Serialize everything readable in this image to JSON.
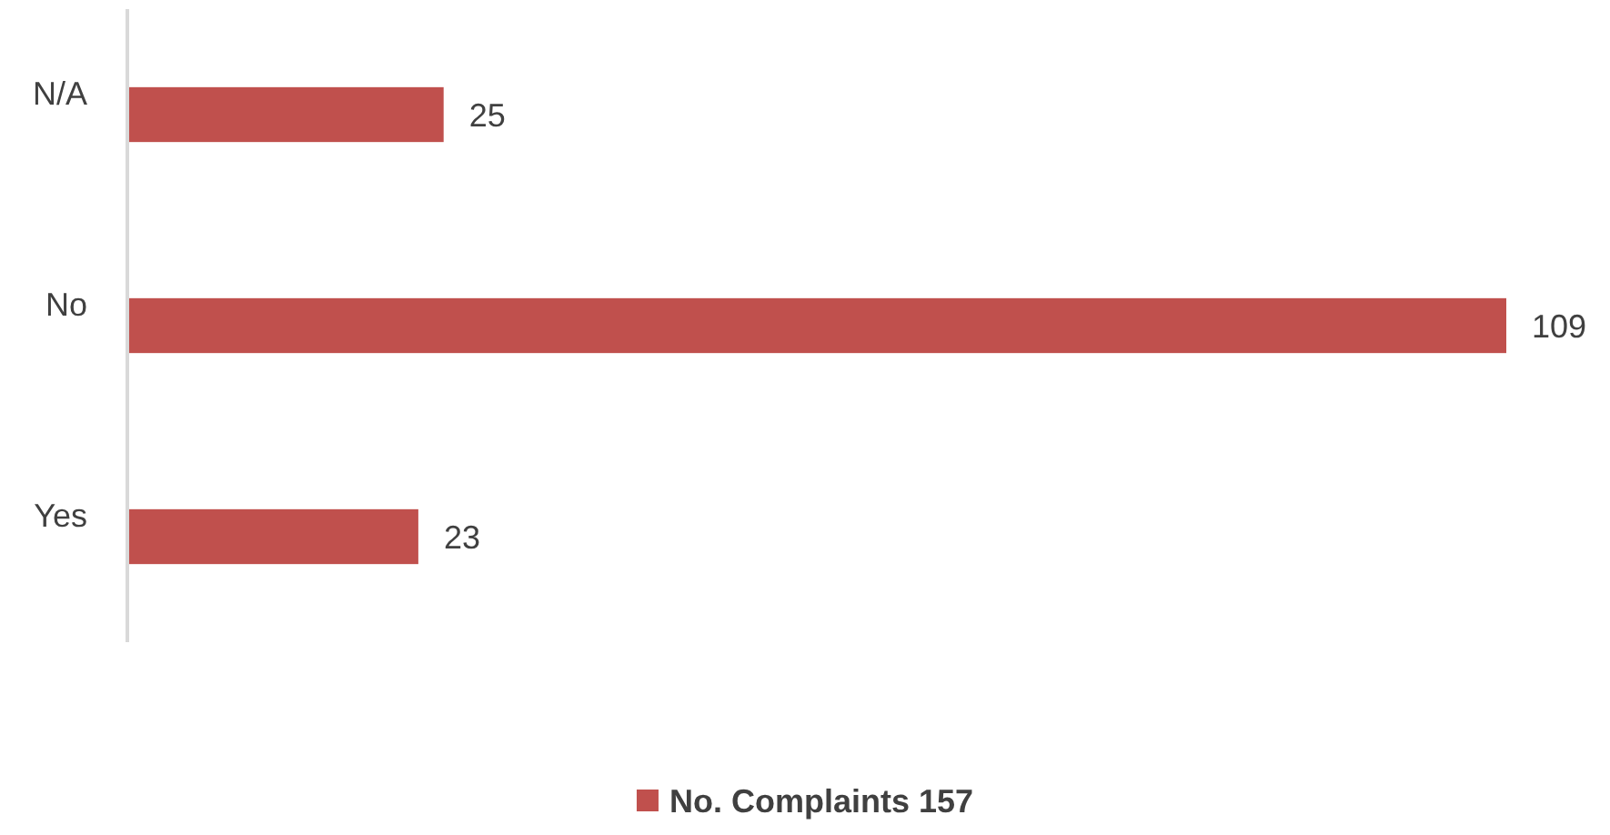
{
  "chart_data": {
    "type": "bar",
    "orientation": "horizontal",
    "categories": [
      "N/A",
      "No",
      "Yes"
    ],
    "series": [
      {
        "name": "No. Complaints 157",
        "color": "#c0504d",
        "values": [
          25,
          109,
          23
        ]
      }
    ],
    "data_labels": true,
    "legend": "bottom"
  }
}
